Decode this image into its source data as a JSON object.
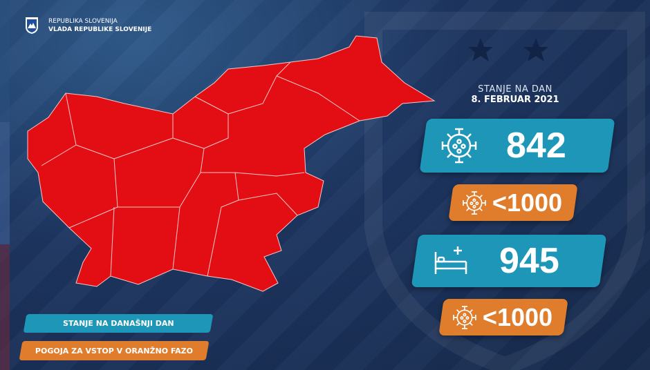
{
  "header": {
    "line1": "REPUBLIKA SLOVENIJA",
    "line2": "VLADA REPUBLIKE SLOVENIJE"
  },
  "status": {
    "label": "STANJE NA DAN",
    "date": "8. FEBRUAR 2021"
  },
  "stats": [
    {
      "icon": "virus-icon",
      "value": "842",
      "kind": "current"
    },
    {
      "icon": "virus-icon",
      "value": "<1000",
      "kind": "threshold"
    },
    {
      "icon": "hospital-bed-icon",
      "value": "945",
      "kind": "current"
    },
    {
      "icon": "virus-icon",
      "value": "<1000",
      "kind": "threshold"
    }
  ],
  "legend": [
    {
      "label": "STANJE NA DANAŠNJI DAN",
      "color": "#1e96b8"
    },
    {
      "label": "POGOJA ZA VSTOP V ORANŽNO FAZO",
      "color": "#e07d2c"
    }
  ],
  "map": {
    "region_color": "#e30e13",
    "phase": "red"
  }
}
